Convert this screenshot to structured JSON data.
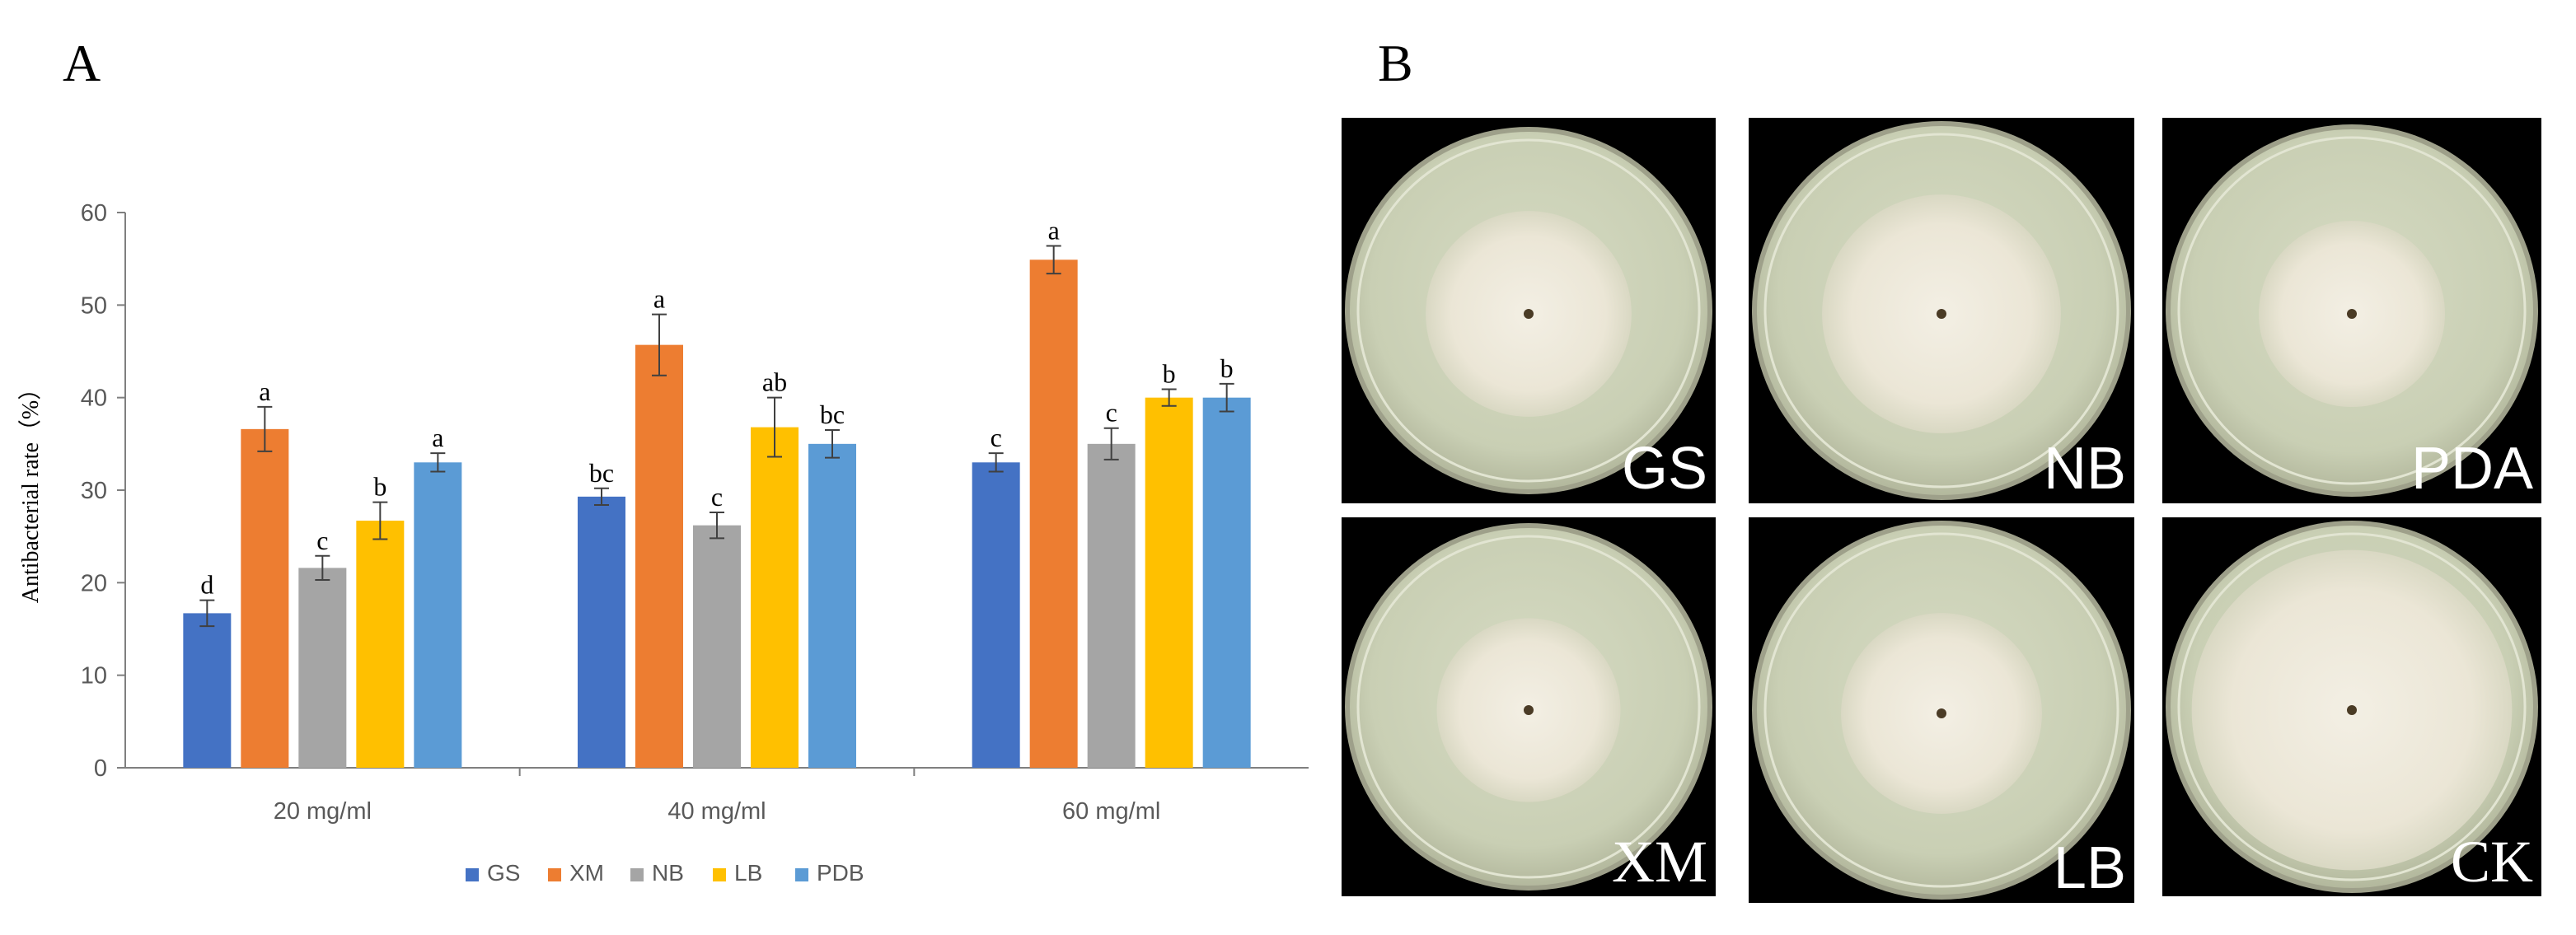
{
  "panels": {
    "a_label": "A",
    "b_label": "B"
  },
  "chart_data": {
    "type": "bar",
    "categories": [
      "20 mg/ml",
      "40 mg/ml",
      "60 mg/ml"
    ],
    "ylabel": "Antibacterial rate（%）",
    "ylim": [
      0,
      60
    ],
    "yticks": [
      0,
      10,
      20,
      30,
      40,
      50,
      60
    ],
    "grid": false,
    "legend_position": "bottom",
    "series": [
      {
        "name": "GS",
        "color": "#4472C4",
        "values": [
          16.7,
          29.3,
          33.0
        ],
        "errors": [
          1.4,
          0.9,
          1.0
        ],
        "letters": [
          "d",
          "bc",
          "c"
        ]
      },
      {
        "name": "XM",
        "color": "#ED7D31",
        "values": [
          36.6,
          45.7,
          54.9
        ],
        "errors": [
          2.4,
          3.3,
          1.5
        ],
        "letters": [
          "a",
          "a",
          "a"
        ]
      },
      {
        "name": "NB",
        "color": "#A5A5A5",
        "values": [
          21.6,
          26.2,
          35.0
        ],
        "errors": [
          1.3,
          1.4,
          1.7
        ],
        "letters": [
          "c",
          "c",
          "c"
        ]
      },
      {
        "name": "LB",
        "color": "#FFC000",
        "values": [
          26.7,
          36.8,
          40.0
        ],
        "errors": [
          2.0,
          3.2,
          0.9
        ],
        "letters": [
          "b",
          "ab",
          "b"
        ]
      },
      {
        "name": "PDB",
        "color": "#5B9BD5",
        "values": [
          33.0,
          35.0,
          40.0
        ],
        "errors": [
          1.0,
          1.5,
          1.5
        ],
        "letters": [
          "a",
          "bc",
          "b"
        ]
      }
    ]
  },
  "plates": [
    {
      "label": "GS",
      "colony_scale": 0.56,
      "label_serif": false
    },
    {
      "label": "NB",
      "colony_scale": 0.63,
      "label_serif": false
    },
    {
      "label": "PDA",
      "colony_scale": 0.5,
      "label_serif": false
    },
    {
      "label": "XM",
      "colony_scale": 0.5,
      "label_serif": true
    },
    {
      "label": "LB",
      "colony_scale": 0.53,
      "label_serif": false
    },
    {
      "label": "CK",
      "colony_scale": 0.86,
      "label_serif": true
    }
  ]
}
